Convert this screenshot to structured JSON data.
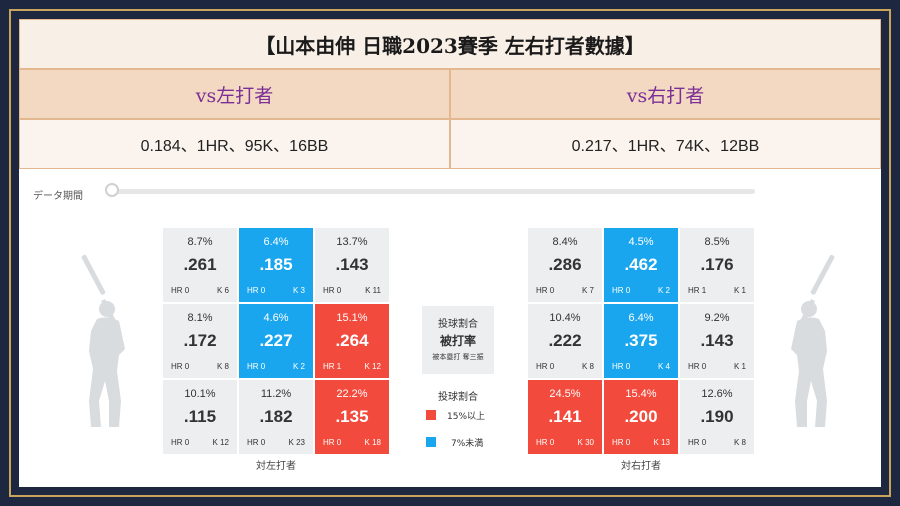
{
  "title": "【山本由伸  日職2023賽季  左右打者數據】",
  "left": {
    "header": "vs左打者",
    "summary": "0.184、1HR、95K、16BB",
    "caption": "対左打者",
    "zones": [
      {
        "pct": "8.7%",
        "avg": ".261",
        "hr": "HR 0",
        "k": "K 6",
        "color": "gray"
      },
      {
        "pct": "6.4%",
        "avg": ".185",
        "hr": "HR 0",
        "k": "K 3",
        "color": "blue"
      },
      {
        "pct": "13.7%",
        "avg": ".143",
        "hr": "HR 0",
        "k": "K 11",
        "color": "gray"
      },
      {
        "pct": "8.1%",
        "avg": ".172",
        "hr": "HR 0",
        "k": "K 8",
        "color": "gray"
      },
      {
        "pct": "4.6%",
        "avg": ".227",
        "hr": "HR 0",
        "k": "K 2",
        "color": "blue"
      },
      {
        "pct": "15.1%",
        "avg": ".264",
        "hr": "HR 1",
        "k": "K 12",
        "color": "red"
      },
      {
        "pct": "10.1%",
        "avg": ".115",
        "hr": "HR 0",
        "k": "K 12",
        "color": "gray"
      },
      {
        "pct": "11.2%",
        "avg": ".182",
        "hr": "HR 0",
        "k": "K 23",
        "color": "gray"
      },
      {
        "pct": "22.2%",
        "avg": ".135",
        "hr": "HR 0",
        "k": "K 18",
        "color": "red"
      }
    ]
  },
  "right": {
    "header": "vs右打者",
    "summary": "0.217、1HR、74K、12BB",
    "caption": "対右打者",
    "zones": [
      {
        "pct": "8.4%",
        "avg": ".286",
        "hr": "HR 0",
        "k": "K 7",
        "color": "gray"
      },
      {
        "pct": "4.5%",
        "avg": ".462",
        "hr": "HR 0",
        "k": "K 2",
        "color": "blue"
      },
      {
        "pct": "8.5%",
        "avg": ".176",
        "hr": "HR 1",
        "k": "K 1",
        "color": "gray"
      },
      {
        "pct": "10.4%",
        "avg": ".222",
        "hr": "HR 0",
        "k": "K 8",
        "color": "gray"
      },
      {
        "pct": "6.4%",
        "avg": ".375",
        "hr": "HR 0",
        "k": "K 4",
        "color": "blue"
      },
      {
        "pct": "9.2%",
        "avg": ".143",
        "hr": "HR 0",
        "k": "K 1",
        "color": "gray"
      },
      {
        "pct": "24.5%",
        "avg": ".141",
        "hr": "HR 0",
        "k": "K 30",
        "color": "red"
      },
      {
        "pct": "15.4%",
        "avg": ".200",
        "hr": "HR 0",
        "k": "K 13",
        "color": "red"
      },
      {
        "pct": "12.6%",
        "avg": ".190",
        "hr": "HR 0",
        "k": "K 8",
        "color": "gray"
      }
    ]
  },
  "slider": {
    "label": "データ期間"
  },
  "legend": {
    "line1": "投球割合",
    "line2": "被打率",
    "line3": "被本塁打  奪三振",
    "title2": "投球割合",
    "high_label": "15%以上",
    "low_label": "7%未満",
    "high_color": "#f24a3c",
    "low_color": "#1aa6ee"
  },
  "colors": {
    "accent": "#c8a45c",
    "header_text": "#7a2f96",
    "background": "#1e2740"
  }
}
